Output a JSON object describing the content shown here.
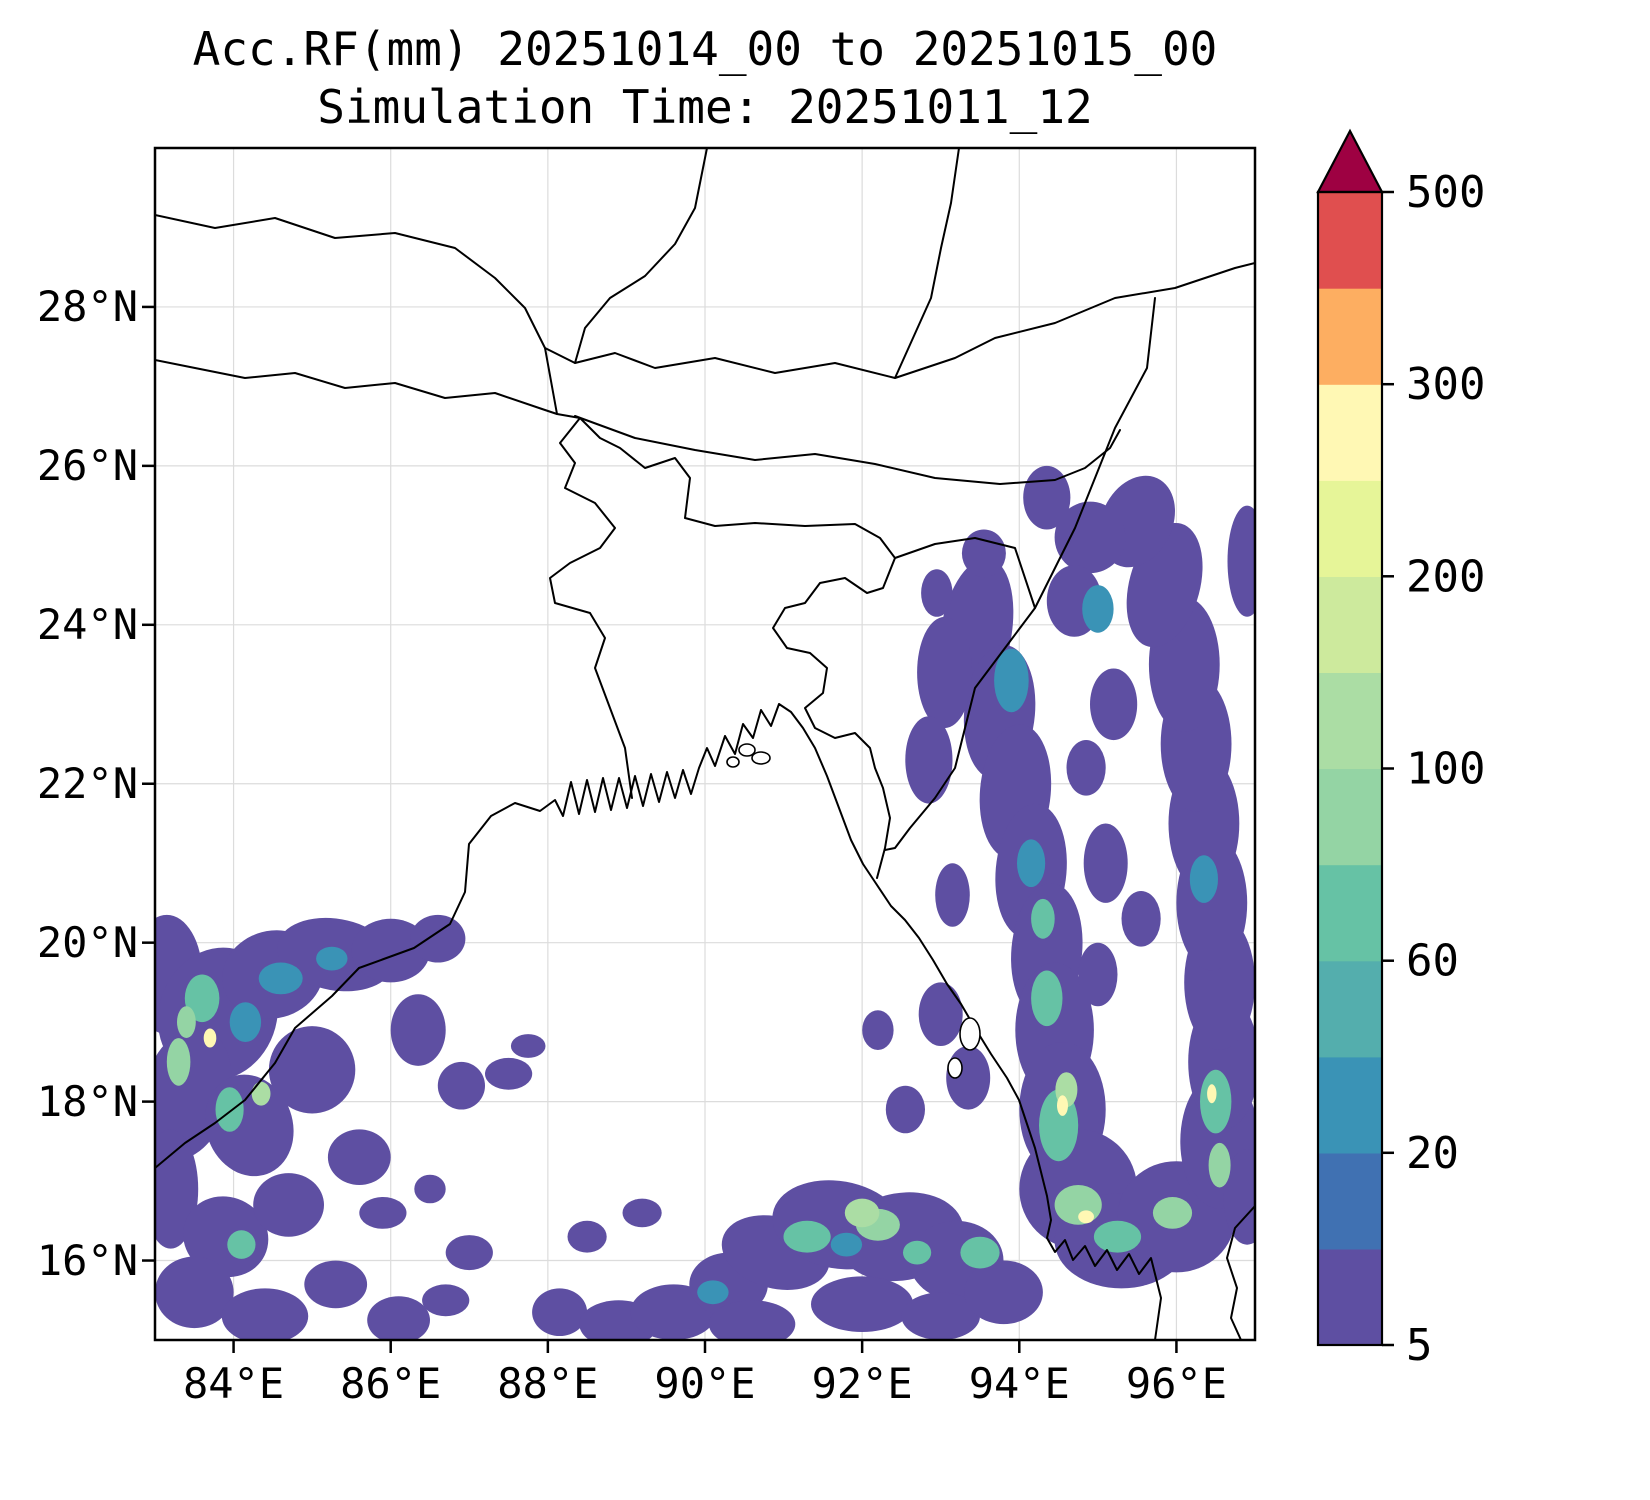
{
  "chart_data": {
    "type": "heatmap",
    "title": "Acc.RF(mm) 20251014_00 to 20251015_00",
    "subtitle": "Simulation Time: 20251011_12",
    "variable": "Accumulated rainfall (mm)",
    "xlim": [
      83,
      97
    ],
    "ylim": [
      15,
      30
    ],
    "x_tick_values": [
      84,
      86,
      88,
      90,
      92,
      94,
      96
    ],
    "x_tick_labels": [
      "84°E",
      "86°E",
      "88°E",
      "90°E",
      "92°E",
      "94°E",
      "96°E"
    ],
    "y_tick_values": [
      16,
      18,
      20,
      22,
      24,
      26,
      28
    ],
    "y_tick_labels": [
      "16°N",
      "18°N",
      "20°N",
      "22°N",
      "24°N",
      "26°N",
      "28°N"
    ],
    "grid": true,
    "legend_position": "right",
    "colorbar": {
      "orientation": "vertical",
      "levels": [
        5,
        10,
        20,
        40,
        60,
        80,
        100,
        150,
        200,
        250,
        300,
        400,
        500
      ],
      "tick_values": [
        5,
        20,
        60,
        100,
        200,
        300,
        500
      ],
      "tick_labels": [
        "5",
        "20",
        "60",
        "100",
        "200",
        "300",
        "500"
      ],
      "colors": [
        "#5e4fa2",
        "#4071b2",
        "#3a93b6",
        "#54aead",
        "#66c2a5",
        "#94d4a4",
        "#abdda4",
        "#cdea9d",
        "#e6f598",
        "#fff8b4",
        "#fdae61",
        "#e04f4f"
      ],
      "over_color": "#9e0142"
    },
    "precip_blobs_format": [
      "lon_deg",
      "lat_deg",
      "rx_deg",
      "ry_deg",
      "color_index",
      "rotation_deg"
    ],
    "precip_blobs": [
      [
        83.15,
        19.6,
        0.45,
        0.75,
        0,
        0
      ],
      [
        83.8,
        19.1,
        0.75,
        0.85,
        0,
        20
      ],
      [
        84.5,
        19.6,
        0.65,
        0.55,
        0,
        -15
      ],
      [
        85.3,
        19.85,
        0.75,
        0.45,
        0,
        10
      ],
      [
        86.0,
        19.9,
        0.5,
        0.4,
        0,
        0
      ],
      [
        86.6,
        20.05,
        0.35,
        0.3,
        0,
        0
      ],
      [
        83.4,
        18.1,
        0.55,
        0.85,
        0,
        15
      ],
      [
        84.2,
        17.7,
        0.55,
        0.65,
        0,
        -20
      ],
      [
        85.0,
        18.4,
        0.55,
        0.55,
        0,
        0
      ],
      [
        85.6,
        17.3,
        0.4,
        0.35,
        0,
        0
      ],
      [
        83.2,
        16.9,
        0.35,
        0.75,
        0,
        0
      ],
      [
        83.9,
        16.3,
        0.55,
        0.5,
        0,
        25
      ],
      [
        84.7,
        16.7,
        0.45,
        0.4,
        0,
        0
      ],
      [
        83.5,
        15.6,
        0.5,
        0.45,
        0,
        0
      ],
      [
        84.4,
        15.3,
        0.55,
        0.35,
        0,
        0
      ],
      [
        85.3,
        15.7,
        0.4,
        0.3,
        0,
        0
      ],
      [
        86.1,
        15.25,
        0.4,
        0.3,
        0,
        0
      ],
      [
        86.35,
        18.9,
        0.35,
        0.45,
        0,
        0
      ],
      [
        86.9,
        18.2,
        0.3,
        0.3,
        0,
        0
      ],
      [
        87.5,
        18.35,
        0.3,
        0.2,
        0,
        0
      ],
      [
        87.75,
        18.7,
        0.22,
        0.15,
        0,
        0
      ],
      [
        85.9,
        16.6,
        0.3,
        0.2,
        0,
        0
      ],
      [
        86.7,
        15.5,
        0.3,
        0.2,
        0,
        0
      ],
      [
        83.6,
        19.3,
        0.22,
        0.3,
        4,
        0
      ],
      [
        84.15,
        19.0,
        0.2,
        0.25,
        2,
        0
      ],
      [
        84.6,
        19.55,
        0.28,
        0.2,
        2,
        0
      ],
      [
        83.95,
        17.9,
        0.18,
        0.28,
        4,
        0
      ],
      [
        83.3,
        18.5,
        0.15,
        0.3,
        5,
        0
      ],
      [
        85.25,
        19.8,
        0.2,
        0.15,
        2,
        0
      ],
      [
        84.1,
        16.2,
        0.18,
        0.18,
        4,
        0
      ],
      [
        83.4,
        19.0,
        0.12,
        0.2,
        5,
        0
      ],
      [
        84.35,
        18.1,
        0.12,
        0.15,
        6,
        0
      ],
      [
        83.7,
        18.8,
        0.08,
        0.12,
        9,
        0
      ],
      [
        88.15,
        15.35,
        0.35,
        0.3,
        0,
        0
      ],
      [
        88.9,
        15.2,
        0.5,
        0.3,
        0,
        0
      ],
      [
        89.6,
        15.35,
        0.55,
        0.35,
        0,
        0
      ],
      [
        90.3,
        15.7,
        0.5,
        0.4,
        0,
        0
      ],
      [
        90.9,
        16.1,
        0.7,
        0.45,
        0,
        15
      ],
      [
        91.7,
        16.45,
        0.85,
        0.55,
        0,
        10
      ],
      [
        92.5,
        16.3,
        0.8,
        0.55,
        0,
        -10
      ],
      [
        93.2,
        16.0,
        0.6,
        0.5,
        0,
        0
      ],
      [
        90.6,
        15.2,
        0.55,
        0.3,
        0,
        0
      ],
      [
        92.0,
        15.45,
        0.65,
        0.35,
        0,
        0
      ],
      [
        93.0,
        15.3,
        0.5,
        0.3,
        0,
        0
      ],
      [
        88.5,
        16.3,
        0.25,
        0.2,
        0,
        0
      ],
      [
        89.2,
        16.6,
        0.25,
        0.18,
        0,
        0
      ],
      [
        87.0,
        16.1,
        0.3,
        0.22,
        0,
        0
      ],
      [
        86.5,
        16.9,
        0.2,
        0.18,
        0,
        0
      ],
      [
        93.8,
        15.6,
        0.5,
        0.4,
        0,
        0
      ],
      [
        91.3,
        16.3,
        0.3,
        0.2,
        4,
        0
      ],
      [
        92.2,
        16.45,
        0.28,
        0.2,
        5,
        0
      ],
      [
        91.8,
        16.2,
        0.2,
        0.15,
        2,
        0
      ],
      [
        92.7,
        16.1,
        0.18,
        0.15,
        4,
        0
      ],
      [
        90.1,
        15.6,
        0.2,
        0.15,
        2,
        0
      ],
      [
        92.0,
        16.6,
        0.22,
        0.18,
        6,
        0
      ],
      [
        93.45,
        23.9,
        0.45,
        0.95,
        0,
        10
      ],
      [
        93.75,
        22.9,
        0.45,
        0.85,
        0,
        5
      ],
      [
        93.95,
        21.9,
        0.45,
        0.85,
        0,
        5
      ],
      [
        94.15,
        20.9,
        0.45,
        0.85,
        0,
        5
      ],
      [
        94.35,
        19.9,
        0.45,
        0.85,
        0,
        5
      ],
      [
        94.45,
        18.9,
        0.5,
        0.85,
        0,
        0
      ],
      [
        94.55,
        17.9,
        0.55,
        0.85,
        0,
        0
      ],
      [
        94.75,
        16.9,
        0.75,
        0.75,
        0,
        0
      ],
      [
        95.3,
        16.25,
        0.85,
        0.6,
        0,
        0
      ],
      [
        96.0,
        16.55,
        0.75,
        0.7,
        0,
        0
      ],
      [
        96.55,
        17.5,
        0.5,
        0.85,
        0,
        0
      ],
      [
        96.6,
        18.5,
        0.45,
        0.85,
        0,
        0
      ],
      [
        96.55,
        19.5,
        0.45,
        0.85,
        0,
        0
      ],
      [
        96.45,
        20.5,
        0.45,
        0.85,
        0,
        0
      ],
      [
        96.35,
        21.5,
        0.45,
        0.85,
        0,
        0
      ],
      [
        96.25,
        22.5,
        0.45,
        0.85,
        0,
        0
      ],
      [
        96.1,
        23.5,
        0.45,
        0.85,
        0,
        0
      ],
      [
        95.85,
        24.5,
        0.45,
        0.8,
        0,
        15
      ],
      [
        95.5,
        25.3,
        0.45,
        0.6,
        0,
        25
      ],
      [
        94.9,
        25.1,
        0.45,
        0.45,
        0,
        0
      ],
      [
        94.7,
        24.3,
        0.35,
        0.45,
        0,
        0
      ],
      [
        94.35,
        25.6,
        0.3,
        0.4,
        0,
        0
      ],
      [
        93.55,
        24.9,
        0.28,
        0.3,
        0,
        0
      ],
      [
        96.9,
        24.8,
        0.25,
        0.7,
        0,
        0
      ],
      [
        96.9,
        16.8,
        0.3,
        0.6,
        0,
        0
      ],
      [
        95.1,
        21.0,
        0.28,
        0.5,
        0,
        0
      ],
      [
        95.0,
        19.6,
        0.25,
        0.4,
        0,
        0
      ],
      [
        95.55,
        20.3,
        0.25,
        0.35,
        0,
        0
      ],
      [
        95.2,
        23.0,
        0.3,
        0.45,
        0,
        0
      ],
      [
        94.85,
        22.2,
        0.25,
        0.35,
        0,
        0
      ],
      [
        93.05,
        23.4,
        0.35,
        0.7,
        0,
        0
      ],
      [
        92.85,
        22.3,
        0.3,
        0.55,
        0,
        0
      ],
      [
        93.15,
        20.6,
        0.22,
        0.4,
        0,
        0
      ],
      [
        93.0,
        19.1,
        0.28,
        0.4,
        0,
        0
      ],
      [
        93.35,
        18.3,
        0.28,
        0.4,
        0,
        0
      ],
      [
        92.55,
        17.9,
        0.25,
        0.3,
        0,
        0
      ],
      [
        92.2,
        18.9,
        0.2,
        0.25,
        0,
        0
      ],
      [
        92.95,
        24.4,
        0.2,
        0.3,
        0,
        0
      ],
      [
        94.5,
        17.7,
        0.25,
        0.45,
        4,
        0
      ],
      [
        94.75,
        16.7,
        0.3,
        0.25,
        5,
        0
      ],
      [
        95.25,
        16.3,
        0.3,
        0.2,
        4,
        0
      ],
      [
        94.35,
        19.3,
        0.2,
        0.35,
        4,
        0
      ],
      [
        94.15,
        21.0,
        0.18,
        0.3,
        2,
        0
      ],
      [
        96.5,
        18.0,
        0.2,
        0.4,
        4,
        0
      ],
      [
        96.35,
        20.8,
        0.18,
        0.3,
        2,
        0
      ],
      [
        95.95,
        16.6,
        0.25,
        0.2,
        5,
        0
      ],
      [
        93.9,
        23.3,
        0.22,
        0.4,
        2,
        0
      ],
      [
        94.6,
        18.15,
        0.14,
        0.22,
        6,
        0
      ],
      [
        96.55,
        17.2,
        0.14,
        0.28,
        5,
        0
      ],
      [
        94.55,
        17.95,
        0.07,
        0.13,
        9,
        0
      ],
      [
        94.85,
        16.55,
        0.1,
        0.08,
        9,
        0
      ],
      [
        96.45,
        18.1,
        0.06,
        0.12,
        9,
        0
      ],
      [
        95.0,
        24.2,
        0.2,
        0.3,
        2,
        0
      ],
      [
        94.3,
        20.3,
        0.15,
        0.25,
        4,
        0
      ],
      [
        93.5,
        16.1,
        0.25,
        0.2,
        4,
        0
      ]
    ]
  },
  "style": {
    "background": "#ffffff",
    "grid_color": "#dcdcdc",
    "line_color": "#000000",
    "text_color": "#000000"
  }
}
